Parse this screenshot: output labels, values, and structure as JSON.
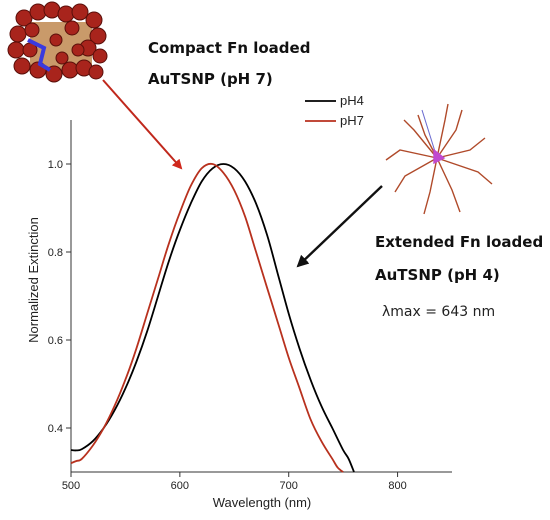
{
  "chart_data": {
    "type": "line",
    "xlabel": "Wavelength (nm)",
    "ylabel": "Normalized Extinction",
    "xlim": [
      500,
      850
    ],
    "ylim": [
      0.3,
      1.1
    ],
    "xticks": [
      500,
      600,
      700,
      800
    ],
    "yticks": [
      0.4,
      0.6,
      0.8,
      1.0
    ],
    "xtick_labels": [
      "500",
      "600",
      "700",
      "800"
    ],
    "ytick_labels": [
      "0.4",
      "0.6",
      "0.8",
      "1.0"
    ],
    "grid": false,
    "legend_position": "top-right",
    "series": [
      {
        "name": "pH4",
        "color": "#000000",
        "x": [
          500,
          505,
          510,
          520,
          530,
          540,
          550,
          560,
          570,
          580,
          590,
          600,
          610,
          620,
          630,
          640,
          650,
          660,
          670,
          680,
          690,
          700,
          710,
          720,
          730,
          740,
          750,
          755,
          760
        ],
        "y": [
          0.35,
          0.349,
          0.352,
          0.37,
          0.4,
          0.44,
          0.49,
          0.55,
          0.62,
          0.7,
          0.78,
          0.85,
          0.91,
          0.96,
          0.99,
          1.0,
          0.99,
          0.96,
          0.91,
          0.84,
          0.75,
          0.66,
          0.58,
          0.51,
          0.45,
          0.4,
          0.35,
          0.33,
          0.3
        ]
      },
      {
        "name": "pH7",
        "color": "#b8311e",
        "x": [
          500,
          505,
          510,
          520,
          530,
          540,
          550,
          560,
          570,
          580,
          590,
          600,
          610,
          620,
          630,
          640,
          650,
          660,
          670,
          680,
          690,
          700,
          710,
          720,
          730,
          740,
          745,
          750
        ],
        "y": [
          0.32,
          0.325,
          0.33,
          0.36,
          0.4,
          0.45,
          0.51,
          0.58,
          0.66,
          0.74,
          0.82,
          0.89,
          0.95,
          0.99,
          1.0,
          0.98,
          0.94,
          0.88,
          0.8,
          0.72,
          0.64,
          0.56,
          0.49,
          0.42,
          0.37,
          0.33,
          0.31,
          0.3
        ]
      }
    ],
    "annotations": {
      "compact_line1": "Compact  Fn  loaded",
      "compact_line2": "AuTSNP (pH 7)",
      "extended_line1": "Extended Fn loaded",
      "extended_line2": "AuTSNP (pH 4)",
      "lambda_max": "λmax = 643 nm"
    }
  }
}
